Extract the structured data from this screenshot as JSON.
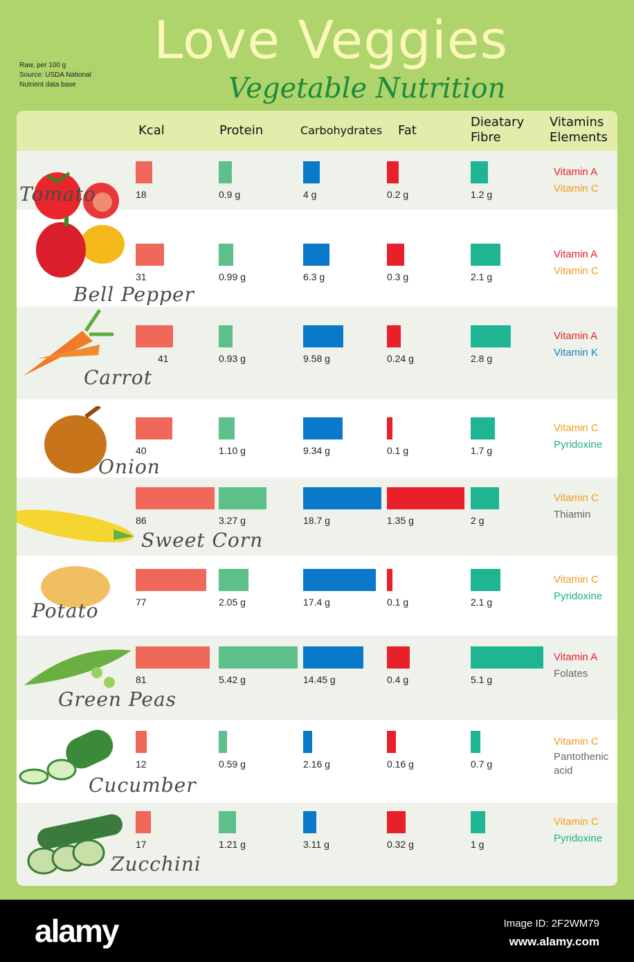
{
  "title": "Love Veggies",
  "subtitle": "Vegetable Nutrition",
  "note": [
    "Raw, per 100 g",
    "Source: USDA National",
    "Nutrient data base"
  ],
  "footer": {
    "logo": "alamy",
    "image_id": "Image ID: 2F2WM79",
    "url": "www.alamy.com"
  },
  "colors": {
    "kcal": "#f0685a",
    "protein": "#5dbf8a",
    "carbohydrates": "#0b79c9",
    "fat": "#e8202a",
    "fibre": "#1fb592",
    "vitamin_a": "#e0202a",
    "vitamin_c": "#f39a1f",
    "vitamin_k": "#1a7fc1",
    "pyridoxine": "#1fae8e",
    "other": "#666666"
  },
  "chart_data": {
    "type": "table",
    "columns": [
      "Kcal",
      "Protein",
      "Carbohydrates",
      "Fat",
      "Dieatary Fibre",
      "Vitamins Elements"
    ],
    "rows": [
      {
        "name": "Tomato",
        "kcal": 18,
        "protein": "0.9 g",
        "carbs": "4 g",
        "fat": "0.2 g",
        "fibre": "1.2 g",
        "vitamins": [
          [
            "Vitamin A",
            "vitamin_a"
          ],
          [
            "Vitamin C",
            "vitamin_c"
          ]
        ],
        "icon": "tomato-icon"
      },
      {
        "name": "Bell Pepper",
        "kcal": 31,
        "protein": "0.99 g",
        "carbs": "6.3 g",
        "fat": "0.3 g",
        "fibre": "2.1 g",
        "vitamins": [
          [
            "Vitamin A",
            "vitamin_a"
          ],
          [
            "Vitamin C",
            "vitamin_c"
          ]
        ],
        "icon": "bell-pepper-icon"
      },
      {
        "name": "Carrot",
        "kcal": 41,
        "protein": "0.93 g",
        "carbs": "9.58 g",
        "fat": "0.24 g",
        "fibre": "2.8 g",
        "vitamins": [
          [
            "Vitamin A",
            "vitamin_a"
          ],
          [
            "Vitamin K",
            "vitamin_k"
          ]
        ],
        "icon": "carrot-icon"
      },
      {
        "name": "Onion",
        "kcal": 40,
        "protein": "1.10 g",
        "carbs": "9.34 g",
        "fat": "0.1 g",
        "fibre": "1.7 g",
        "vitamins": [
          [
            "Vitamin C",
            "vitamin_c"
          ],
          [
            "Pyridoxine",
            "pyridoxine"
          ]
        ],
        "icon": "onion-icon"
      },
      {
        "name": "Sweet Corn",
        "kcal": 86,
        "protein": "3.27 g",
        "carbs": "18.7 g",
        "fat": "1.35 g",
        "fibre": "2 g",
        "vitamins": [
          [
            "Vitamin C",
            "vitamin_c"
          ],
          [
            "Thiamin",
            "other"
          ]
        ],
        "icon": "corn-icon"
      },
      {
        "name": "Potato",
        "kcal": 77,
        "protein": "2.05 g",
        "carbs": "17.4 g",
        "fat": "0.1 g",
        "fibre": "2.1 g",
        "vitamins": [
          [
            "Vitamin C",
            "vitamin_c"
          ],
          [
            "Pyridoxine",
            "pyridoxine"
          ]
        ],
        "icon": "potato-icon"
      },
      {
        "name": "Green Peas",
        "kcal": 81,
        "protein": "5.42 g",
        "carbs": "14.45 g",
        "fat": "0.4 g",
        "fibre": "5.1 g",
        "vitamins": [
          [
            "Vitamin A",
            "vitamin_a"
          ],
          [
            "Folates",
            "other"
          ]
        ],
        "icon": "peas-icon"
      },
      {
        "name": "Cucumber",
        "kcal": 12,
        "protein": "0.59 g",
        "carbs": "2.16 g",
        "fat": "0.16 g",
        "fibre": "0.7 g",
        "vitamins": [
          [
            "Vitamin C",
            "vitamin_c"
          ],
          [
            "Pantothenic acid",
            "other"
          ]
        ],
        "icon": "cucumber-icon"
      },
      {
        "name": "Zucchini",
        "kcal": 17,
        "protein": "1.21 g",
        "carbs": "3.11 g",
        "fat": "0.32 g",
        "fibre": "1 g",
        "vitamins": [
          [
            "Vitamin C",
            "vitamin_c"
          ],
          [
            "Pyridoxine",
            "pyridoxine"
          ]
        ],
        "icon": "zucchini-icon"
      }
    ]
  }
}
